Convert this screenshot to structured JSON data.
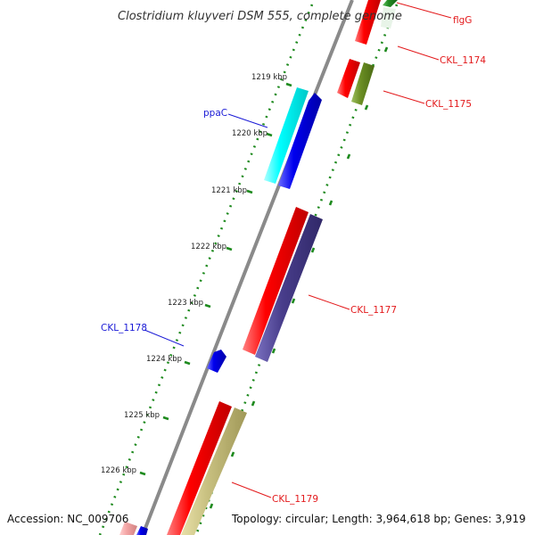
{
  "title": "Clostridium kluyveri DSM 555, complete genome",
  "footer": {
    "accession": "Accession: NC_009706",
    "summary": "Topology: circular; Length: 3,964,618 bp; Genes: 3,919"
  },
  "scale": {
    "ticks": [
      "1219 kbp",
      "1220 kbp",
      "1221 kbp",
      "1222 kbp",
      "1223 kbp",
      "1224 kbp",
      "1225 kbp",
      "1226 kbp"
    ]
  },
  "genes": [
    {
      "id": "flgG",
      "label": "flgG",
      "strand": "forward",
      "color": "#e31a1c"
    },
    {
      "id": "CKL_1174",
      "label": "CKL_1174",
      "strand": "forward",
      "color": "#e31a1c"
    },
    {
      "id": "CKL_1175",
      "label": "CKL_1175",
      "strand": "forward",
      "color": "#e31a1c"
    },
    {
      "id": "ppaC",
      "label": "ppaC",
      "strand": "reverse",
      "color": "#1a1ad6"
    },
    {
      "id": "CKL_1177",
      "label": "CKL_1177",
      "strand": "forward",
      "color": "#e31a1c"
    },
    {
      "id": "CKL_1178",
      "label": "CKL_1178",
      "strand": "reverse",
      "color": "#1a1ad6"
    },
    {
      "id": "CKL_1179",
      "label": "CKL_1179",
      "strand": "forward",
      "color": "#e31a1c"
    }
  ],
  "colors": {
    "backbone": "#8a8a8a",
    "dotted_track": "#1e8a1e",
    "cds_forward": "#ff0000",
    "cds_reverse": "#0000ee",
    "cog_cyan": "#00ffff",
    "cog_olive": "#6b8e23",
    "cog_purple": "#483d8b",
    "cog_khaki": "#c8c080",
    "cog_green": "#228b22",
    "cog_pink": "#f4a6a6"
  }
}
